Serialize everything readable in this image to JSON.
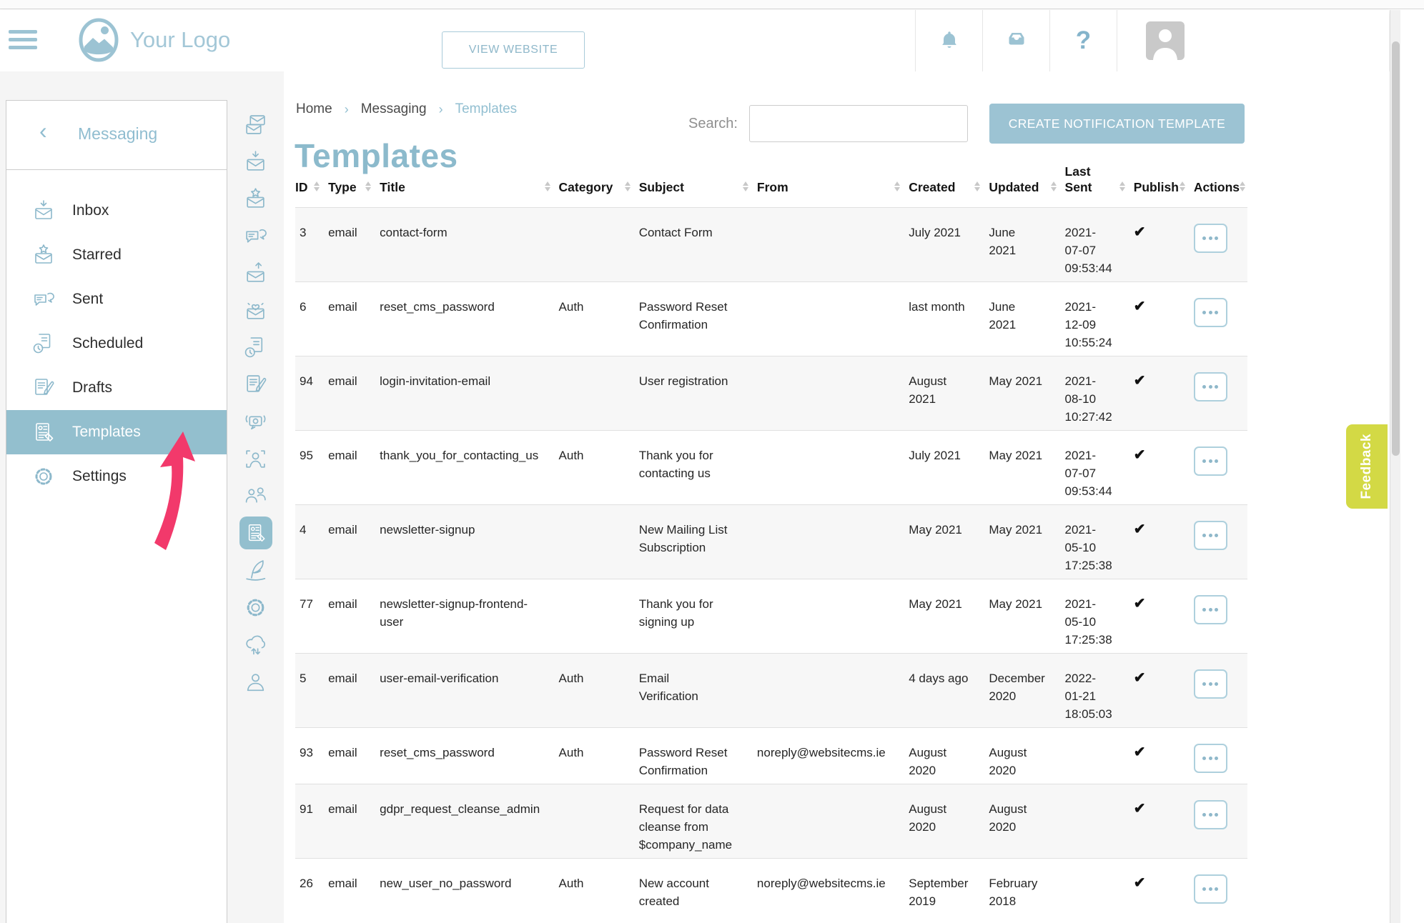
{
  "header": {
    "logo_text": "Your Logo",
    "view_website": "VIEW WEBSITE",
    "help_glyph": "?"
  },
  "sidebar": {
    "back": "‹",
    "title": "Messaging",
    "items": [
      {
        "label": "Inbox",
        "icon": "mail-inbox",
        "selected": false
      },
      {
        "label": "Starred",
        "icon": "mail-star",
        "selected": false
      },
      {
        "label": "Sent",
        "icon": "chat-bubbles",
        "selected": false
      },
      {
        "label": "Scheduled",
        "icon": "doc-clock",
        "selected": false
      },
      {
        "label": "Drafts",
        "icon": "doc-pen",
        "selected": false
      },
      {
        "label": "Templates",
        "icon": "templates",
        "selected": true
      },
      {
        "label": "Settings",
        "icon": "gear",
        "selected": false
      }
    ]
  },
  "icon_strip": {
    "items": [
      {
        "icon": "mail-stack",
        "selected": false
      },
      {
        "icon": "mail-inbox",
        "selected": false
      },
      {
        "icon": "mail-star",
        "selected": false
      },
      {
        "icon": "chat-bubbles",
        "selected": false
      },
      {
        "icon": "mail-send",
        "selected": false
      },
      {
        "icon": "mail-heart",
        "selected": false
      },
      {
        "icon": "doc-clock",
        "selected": false
      },
      {
        "icon": "doc-pen",
        "selected": false
      },
      {
        "icon": "chat-broadcast",
        "selected": false
      },
      {
        "icon": "user-frame",
        "selected": false
      },
      {
        "icon": "users",
        "selected": false
      },
      {
        "icon": "templates",
        "selected": true
      },
      {
        "icon": "quill",
        "selected": false
      },
      {
        "icon": "gear",
        "selected": false
      },
      {
        "icon": "cloud-sync",
        "selected": false
      },
      {
        "icon": "user",
        "selected": false
      }
    ]
  },
  "breadcrumb": {
    "separator": "›",
    "items": [
      {
        "label": "Home",
        "active": false
      },
      {
        "label": "Messaging",
        "active": false
      },
      {
        "label": "Templates",
        "active": true
      }
    ]
  },
  "page_title": "Templates",
  "toolbar": {
    "search_label": "Search:",
    "search_value": "",
    "create_button": "CREATE NOTIFICATION TEMPLATE"
  },
  "table": {
    "publish_glyph": "✔",
    "columns": [
      {
        "label": "ID",
        "sortable": true
      },
      {
        "label": "Type",
        "sortable": true
      },
      {
        "label": "Title",
        "sortable": true
      },
      {
        "label": "Category",
        "sortable": true
      },
      {
        "label": "Subject",
        "sortable": true
      },
      {
        "label": "From",
        "sortable": true
      },
      {
        "label": "Created",
        "sortable": true
      },
      {
        "label": "Updated",
        "sortable": true
      },
      {
        "label": "Last Sent",
        "sortable": true
      },
      {
        "label": "Publish",
        "sortable": true
      },
      {
        "label": "Actions",
        "sortable": true
      }
    ],
    "rows": [
      {
        "id": "3",
        "type": "email",
        "title": "contact-form",
        "category": "",
        "subject": "Contact Form",
        "from": "",
        "created": "July 2021",
        "updated": "June\n2021",
        "last_sent": "2021-\n07-07\n09:53:44",
        "published": true
      },
      {
        "id": "6",
        "type": "email",
        "title": "reset_cms_password",
        "category": "Auth",
        "subject": "Password Reset\nConfirmation",
        "from": "",
        "created": "last month",
        "updated": "June\n2021",
        "last_sent": "2021-\n12-09\n10:55:24",
        "published": true
      },
      {
        "id": "94",
        "type": "email",
        "title": "login-invitation-email",
        "category": "",
        "subject": "User registration",
        "from": "",
        "created": "August\n2021",
        "updated": "May 2021",
        "last_sent": "2021-\n08-10\n10:27:42",
        "published": true
      },
      {
        "id": "95",
        "type": "email",
        "title": "thank_you_for_contacting_us",
        "category": "Auth",
        "subject": "Thank you for\ncontacting us",
        "from": "",
        "created": "July 2021",
        "updated": "May 2021",
        "last_sent": "2021-\n07-07\n09:53:44",
        "published": true
      },
      {
        "id": "4",
        "type": "email",
        "title": "newsletter-signup",
        "category": "",
        "subject": "New Mailing List\nSubscription",
        "from": "",
        "created": "May 2021",
        "updated": "May 2021",
        "last_sent": "2021-\n05-10\n17:25:38",
        "published": true
      },
      {
        "id": "77",
        "type": "email",
        "title": "newsletter-signup-frontend-user",
        "category": "",
        "subject": "Thank you for\nsigning up",
        "from": "",
        "created": "May 2021",
        "updated": "May 2021",
        "last_sent": "2021-\n05-10\n17:25:38",
        "published": true
      },
      {
        "id": "5",
        "type": "email",
        "title": "user-email-verification",
        "category": "Auth",
        "subject": "Email\nVerification",
        "from": "",
        "created": "4 days ago",
        "updated": "December\n2020",
        "last_sent": "2022-\n01-21\n18:05:03",
        "published": true
      },
      {
        "id": "93",
        "type": "email",
        "title": "reset_cms_password",
        "category": "Auth",
        "subject": "Password Reset\nConfirmation",
        "from": "noreply@websitecms.ie",
        "created": "August\n2020",
        "updated": "August\n2020",
        "last_sent": "",
        "published": true
      },
      {
        "id": "91",
        "type": "email",
        "title": "gdpr_request_cleanse_admin",
        "category": "",
        "subject": "Request for data\ncleanse from\n$company_name",
        "from": "",
        "created": "August\n2020",
        "updated": "August\n2020",
        "last_sent": "",
        "published": true
      },
      {
        "id": "26",
        "type": "email",
        "title": "new_user_no_password",
        "category": "Auth",
        "subject": "New account\ncreated",
        "from": "noreply@websitecms.ie",
        "created": "September\n2019",
        "updated": "February\n2018",
        "last_sent": "",
        "published": true
      }
    ]
  },
  "feedback_tab": {
    "label": "Feedback"
  },
  "colors": {
    "accent": "#93bfce",
    "button": "#9cc3d3",
    "arrow_pink": "#f2396b",
    "feedback_tab": "#d3d945",
    "row_alt": "#f7f7f7"
  }
}
